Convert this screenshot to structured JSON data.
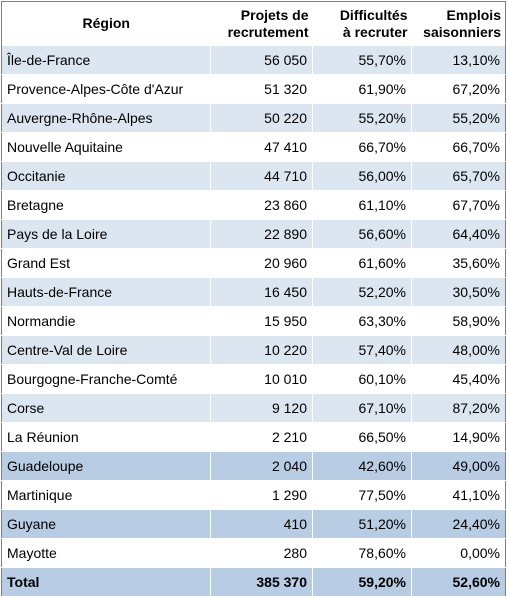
{
  "headers": {
    "region": "Région",
    "projets": [
      "Projets de",
      "recrutement"
    ],
    "difficultes": [
      "Difficultés",
      "à recruter"
    ],
    "emplois": [
      "Emplois",
      "saisonniers"
    ]
  },
  "rows": [
    {
      "region": "Île-de-France",
      "projets": "56 050",
      "difficultes": "55,70%",
      "emplois": "13,10%"
    },
    {
      "region": "Provence-Alpes-Côte d'Azur",
      "projets": "51 320",
      "difficultes": "61,90%",
      "emplois": "67,20%"
    },
    {
      "region": "Auvergne-Rhône-Alpes",
      "projets": "50 220",
      "difficultes": "55,20%",
      "emplois": "55,20%"
    },
    {
      "region": "Nouvelle Aquitaine",
      "projets": "47 410",
      "difficultes": "66,70%",
      "emplois": "66,70%"
    },
    {
      "region": "Occitanie",
      "projets": "44 710",
      "difficultes": "56,00%",
      "emplois": "65,70%"
    },
    {
      "region": "Bretagne",
      "projets": "23 860",
      "difficultes": "61,10%",
      "emplois": "67,70%"
    },
    {
      "region": "Pays de la Loire",
      "projets": "22 890",
      "difficultes": "56,60%",
      "emplois": "64,40%"
    },
    {
      "region": "Grand Est",
      "projets": "20 960",
      "difficultes": "61,60%",
      "emplois": "35,60%"
    },
    {
      "region": "Hauts-de-France",
      "projets": "16 450",
      "difficultes": "52,20%",
      "emplois": "30,50%"
    },
    {
      "region": "Normandie",
      "projets": "15 950",
      "difficultes": "63,30%",
      "emplois": "58,90%"
    },
    {
      "region": "Centre-Val de Loire",
      "projets": "10 220",
      "difficultes": "57,40%",
      "emplois": "48,00%"
    },
    {
      "region": "Bourgogne-Franche-Comté",
      "projets": "10 010",
      "difficultes": "60,10%",
      "emplois": "45,40%"
    },
    {
      "region": "Corse",
      "projets": "9 120",
      "difficultes": "67,10%",
      "emplois": "87,20%"
    },
    {
      "region": "La Réunion",
      "projets": "2 210",
      "difficultes": "66,50%",
      "emplois": "14,90%"
    },
    {
      "region": "Guadeloupe",
      "projets": "2 040",
      "difficultes": "42,60%",
      "emplois": "49,00%"
    },
    {
      "region": "Martinique",
      "projets": "1 290",
      "difficultes": "77,50%",
      "emplois": "41,10%"
    },
    {
      "region": "Guyane",
      "projets": "410",
      "difficultes": "51,20%",
      "emplois": "24,40%"
    },
    {
      "region": "Mayotte",
      "projets": "280",
      "difficultes": "78,60%",
      "emplois": "0,00%"
    }
  ],
  "total": {
    "region": "Total",
    "projets": "385 370",
    "difficultes": "59,20%",
    "emplois": "52,60%"
  },
  "colors": {
    "header": "#ffffff",
    "light_row": "#dce6f1",
    "mid_row": "#b8cce4",
    "white_row": "#ffffff"
  }
}
